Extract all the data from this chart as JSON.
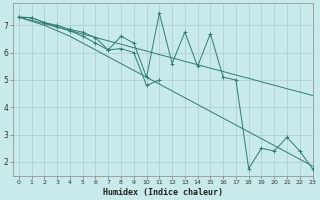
{
  "xlabel": "Humidex (Indice chaleur)",
  "bg_color": "#c8eaea",
  "grid_color": "#aacccc",
  "line_color": "#2e7d6e",
  "xlim": [
    -0.5,
    23
  ],
  "ylim": [
    1.5,
    7.8
  ],
  "xticks": [
    0,
    1,
    2,
    3,
    4,
    5,
    6,
    7,
    8,
    9,
    10,
    11,
    12,
    13,
    14,
    15,
    16,
    17,
    18,
    19,
    20,
    21,
    22,
    23
  ],
  "yticks": [
    2,
    3,
    4,
    5,
    6,
    7
  ],
  "series": [
    [
      7.3,
      7.28,
      7.1,
      7.0,
      6.85,
      6.75,
      6.55,
      6.1,
      6.6,
      6.35,
      5.1,
      7.45,
      5.6,
      6.75,
      5.5,
      6.7,
      5.1,
      5.0,
      1.75,
      2.5,
      2.4,
      2.9,
      2.4,
      1.75
    ],
    [
      7.3,
      7.28,
      7.1,
      6.95,
      6.8,
      6.6,
      6.35,
      6.1,
      6.15,
      6.0,
      4.8,
      5.0,
      null,
      null,
      null,
      null,
      null,
      null,
      null,
      null,
      null,
      null,
      null,
      null
    ],
    [
      7.3,
      7.18,
      7.06,
      6.93,
      6.81,
      6.68,
      6.56,
      6.43,
      6.31,
      6.18,
      6.06,
      5.93,
      5.81,
      5.68,
      5.56,
      5.43,
      5.31,
      5.18,
      5.06,
      4.93,
      4.81,
      4.68,
      4.56,
      4.43
    ],
    [
      7.3,
      7.15,
      7.0,
      6.8,
      6.6,
      6.35,
      6.1,
      5.85,
      5.6,
      5.35,
      5.1,
      4.85,
      4.6,
      4.35,
      4.1,
      3.85,
      3.6,
      3.35,
      3.1,
      2.85,
      2.6,
      2.35,
      2.1,
      1.85
    ]
  ]
}
